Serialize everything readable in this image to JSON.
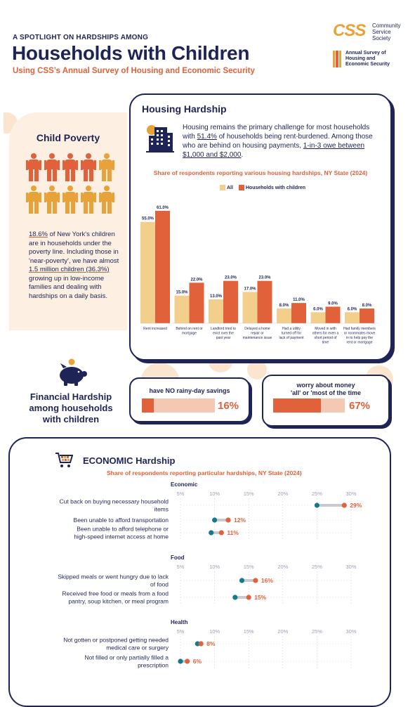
{
  "header": {
    "kicker": "A SPOTLIGHT ON HARDSHIPS AMONG",
    "title": "Households with Children",
    "subtitle": "Using CSS’s Annual Survey of Housing and Economic Security"
  },
  "logo": {
    "mark": "CSS",
    "org_line1": "Community",
    "org_line2": "Service",
    "org_line3": "Society",
    "survey_line1": "Annual Survey of",
    "survey_line2": "Housing and",
    "survey_line3": "Economic Security"
  },
  "child_poverty": {
    "title": "Child Poverty",
    "people_colors": [
      "#e0613a",
      "#e0613a",
      "#e0613a",
      "#e0613a",
      "#e8a23a",
      "#e8a23a",
      "#e8a23a",
      "#e8a23a",
      "#e8a23a",
      "#e8a23a"
    ],
    "text_1": "18.6%",
    "text_2": " of New York's children are in households under the poverty line. Including those in 'near-poverty', we have almost ",
    "text_3": "1.5 million children (36.3%)",
    "text_4": " growing up in low-income families and dealing with hardships on a daily basis."
  },
  "housing": {
    "title": "Housing Hardship",
    "text_1": "Housing remains the primary challenge for most households with ",
    "text_2": "51.4%",
    "text_3": " of households being rent-burdened. Among those who are behind on housing payments, ",
    "text_4": "1-in-3 owe between $1,000 and $2,000",
    "text_5": "."
  },
  "financial": {
    "title": "Financial Hardship among households with children",
    "card1_label": "have NO rainy-day savings",
    "card1_value": 16,
    "card1_pct": "16%",
    "card2_label_1": "worry about money",
    "card2_label_2": "'all' or 'most of the time",
    "card2_value": 67,
    "card2_pct": "67%"
  },
  "economic": {
    "title": "ECONOMIC Hardship",
    "subtitle": "Share of respondents reporting particular hardships, NY State (2024)"
  },
  "colors": {
    "navy": "#1f2456",
    "orange": "#e0613a",
    "gold": "#e8a23a",
    "light_gold": "#f3cf8e",
    "teal": "#127a8a",
    "peach": "#fbe5cf"
  },
  "chart_data": [
    {
      "type": "bar",
      "title": "Share of respondents reporting various housing hardships,  NY State (2024)",
      "categories": [
        "Rent increased",
        "Behind on rent or mortgage",
        "Landlord tried to evict over the past year",
        "Delayed a home repair or maintenance issue",
        "Had a utility turned off for lack of payment",
        "Moved in with others for even a short period of time",
        "Had family members or roommates move in to help pay the rent or mortgage"
      ],
      "series": [
        {
          "name": "All",
          "values": [
            55.0,
            15.0,
            13.0,
            17.0,
            8.0,
            6.0,
            6.0
          ],
          "labels": [
            "55.0%",
            "15.0%",
            "13.0%",
            "17.0%",
            "8.0%",
            "6.0%",
            "6.0%"
          ]
        },
        {
          "name": "Households with children",
          "values": [
            61.0,
            22.0,
            23.0,
            23.0,
            11.0,
            9.0,
            8.0
          ],
          "labels": [
            "61.0%",
            "22.0%",
            "23.0%",
            "23.0%",
            "11.0%",
            "9.0%",
            "8.0%"
          ]
        }
      ],
      "legend": "top-center",
      "grid": false
    },
    {
      "type": "scatter",
      "title": "Share of respondents reporting particular hardships, NY State (2024)",
      "x_ticks": [
        "5%",
        "10%",
        "15%",
        "20%",
        "25%",
        "30%"
      ],
      "xlim": [
        5,
        30
      ],
      "groups": [
        {
          "name": "Economic",
          "items": [
            {
              "label": "Cut back on buying necessary household items",
              "all": 25,
              "children": 29,
              "children_label": "29%"
            },
            {
              "label": "Been unable to afford transportation",
              "all": 10,
              "children": 12,
              "children_label": "12%"
            },
            {
              "label": "Been unable to afford telephone or high-speed internet access at home",
              "all": 9.5,
              "children": 11,
              "children_label": "11%"
            }
          ]
        },
        {
          "name": "Food",
          "items": [
            {
              "label": "Skipped meals or went hungry due to lack of food",
              "all": 14,
              "children": 16,
              "children_label": "16%"
            },
            {
              "label": "Received free food or meals from a food pantry, soup kitchen, or meal program",
              "all": 13,
              "children": 15,
              "children_label": "15%"
            }
          ]
        },
        {
          "name": "Health",
          "items": [
            {
              "label": "Not gotten or postponed getting needed medical care or surgery",
              "all": 7.5,
              "children": 8,
              "children_label": "8%"
            },
            {
              "label": "Not filled or only partially filled a prescription",
              "all": 5,
              "children": 6,
              "children_label": "6%"
            }
          ]
        }
      ],
      "grid": true
    }
  ]
}
